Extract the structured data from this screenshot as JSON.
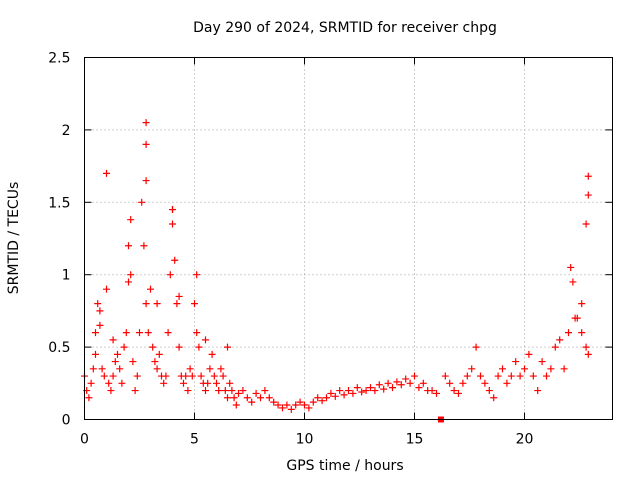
{
  "chart_data": {
    "type": "scatter",
    "title": "Day 290 of 2024, SRMTID for receiver chpg",
    "xlabel": "GPS time / hours",
    "ylabel": "SRMTID / TECUs",
    "xlim": [
      0,
      24
    ],
    "ylim": [
      0,
      2.5
    ],
    "x_ticks": [
      0,
      5,
      10,
      15,
      20
    ],
    "x_tick_labels": [
      "0",
      "5",
      "10",
      "15",
      "20"
    ],
    "y_ticks": [
      0,
      0.5,
      1,
      1.5,
      2,
      2.5
    ],
    "y_tick_labels": [
      "0",
      "0.5",
      "1",
      "1.5",
      "2",
      "2.5"
    ],
    "grid": true,
    "marker": "plus",
    "color": "#ff0000",
    "special_marker": {
      "x": 16.2,
      "y": 0.0,
      "shape": "square"
    },
    "series": [
      {
        "name": "SRMTID",
        "x": [
          0.0,
          0.1,
          0.2,
          0.3,
          0.4,
          0.5,
          0.6,
          0.7,
          0.8,
          0.9,
          1.0,
          1.1,
          1.2,
          1.3,
          1.4,
          1.5,
          1.6,
          1.7,
          1.8,
          1.9,
          2.0,
          2.1,
          2.2,
          2.3,
          2.4,
          2.5,
          2.6,
          2.7,
          2.8,
          2.9,
          3.0,
          3.1,
          3.2,
          3.3,
          3.4,
          3.5,
          3.6,
          3.7,
          3.8,
          3.9,
          4.0,
          4.1,
          4.2,
          4.3,
          4.4,
          4.5,
          4.6,
          4.7,
          4.8,
          4.9,
          5.0,
          5.1,
          5.2,
          5.3,
          5.4,
          5.5,
          5.6,
          5.7,
          5.8,
          5.9,
          6.0,
          6.1,
          6.2,
          6.3,
          6.4,
          6.5,
          6.6,
          6.7,
          6.8,
          6.9,
          7.0,
          7.2,
          7.4,
          7.6,
          7.8,
          8.0,
          8.2,
          8.4,
          8.6,
          8.8,
          9.0,
          9.2,
          9.4,
          9.6,
          9.8,
          10.0,
          10.2,
          10.4,
          10.6,
          10.8,
          11.0,
          11.2,
          11.4,
          11.6,
          11.8,
          12.0,
          12.2,
          12.4,
          12.6,
          12.8,
          13.0,
          13.2,
          13.4,
          13.6,
          13.8,
          14.0,
          14.2,
          14.4,
          14.6,
          14.8,
          15.0,
          15.2,
          15.4,
          15.6,
          15.8,
          16.0,
          16.4,
          16.6,
          16.8,
          17.0,
          17.2,
          17.4,
          17.6,
          17.8,
          18.0,
          18.2,
          18.4,
          18.6,
          18.8,
          19.0,
          19.2,
          19.4,
          19.6,
          19.8,
          20.0,
          20.2,
          20.4,
          20.6,
          20.8,
          21.0,
          21.2,
          21.4,
          21.6,
          21.8,
          22.0,
          22.2,
          22.4,
          22.6,
          22.8,
          22.9,
          1.0,
          2.8,
          2.8,
          2.8,
          4.0,
          4.0,
          22.9,
          22.9,
          22.8,
          0.7,
          0.5,
          1.3,
          2.0,
          2.1,
          3.3,
          4.3,
          5.1,
          5.5,
          6.5,
          22.1,
          22.3,
          22.6
        ],
        "y": [
          0.3,
          0.2,
          0.15,
          0.25,
          0.35,
          0.45,
          0.8,
          0.65,
          0.35,
          0.3,
          0.9,
          0.25,
          0.2,
          0.3,
          0.4,
          0.45,
          0.35,
          0.25,
          0.5,
          0.6,
          1.2,
          1.0,
          0.4,
          0.2,
          0.3,
          0.6,
          1.5,
          1.2,
          0.8,
          0.6,
          0.9,
          0.5,
          0.4,
          0.35,
          0.45,
          0.3,
          0.25,
          0.3,
          0.6,
          1.0,
          1.45,
          1.1,
          0.8,
          0.5,
          0.3,
          0.25,
          0.3,
          0.2,
          0.35,
          0.3,
          0.8,
          1.0,
          0.5,
          0.3,
          0.25,
          0.2,
          0.25,
          0.35,
          0.45,
          0.3,
          0.25,
          0.2,
          0.35,
          0.3,
          0.2,
          0.15,
          0.25,
          0.2,
          0.15,
          0.1,
          0.18,
          0.2,
          0.15,
          0.12,
          0.18,
          0.15,
          0.2,
          0.15,
          0.12,
          0.1,
          0.08,
          0.1,
          0.07,
          0.1,
          0.12,
          0.1,
          0.08,
          0.12,
          0.15,
          0.13,
          0.15,
          0.18,
          0.16,
          0.2,
          0.17,
          0.2,
          0.18,
          0.22,
          0.19,
          0.2,
          0.22,
          0.2,
          0.24,
          0.21,
          0.25,
          0.22,
          0.26,
          0.24,
          0.28,
          0.25,
          0.3,
          0.22,
          0.25,
          0.2,
          0.2,
          0.18,
          0.3,
          0.25,
          0.2,
          0.18,
          0.25,
          0.3,
          0.35,
          0.5,
          0.3,
          0.25,
          0.2,
          0.15,
          0.3,
          0.35,
          0.25,
          0.3,
          0.4,
          0.3,
          0.35,
          0.45,
          0.3,
          0.2,
          0.4,
          0.3,
          0.35,
          0.5,
          0.55,
          0.35,
          0.6,
          0.95,
          0.7,
          0.6,
          0.5,
          0.45,
          1.7,
          2.05,
          1.9,
          1.65,
          1.45,
          1.35,
          1.68,
          1.55,
          1.35,
          0.75,
          0.6,
          0.55,
          0.95,
          1.38,
          0.8,
          0.85,
          0.6,
          0.55,
          0.5,
          1.05,
          0.7,
          0.8
        ]
      }
    ]
  }
}
